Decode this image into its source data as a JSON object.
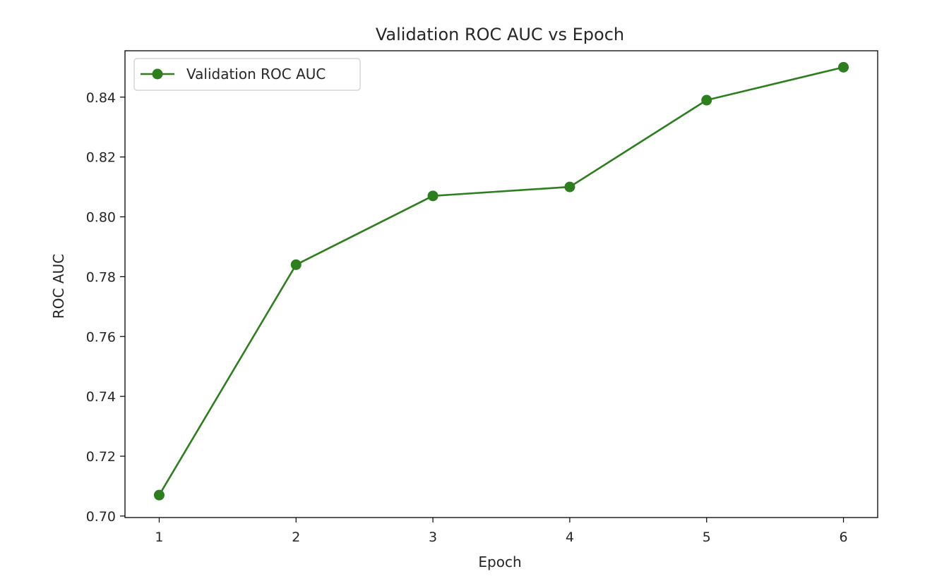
{
  "chart_data": {
    "type": "line",
    "title": "Validation ROC AUC vs Epoch",
    "xlabel": "Epoch",
    "ylabel": "ROC AUC",
    "x": [
      1,
      2,
      3,
      4,
      5,
      6
    ],
    "xticks": [
      "1",
      "2",
      "3",
      "4",
      "5",
      "6"
    ],
    "yticks": [
      "0.70",
      "0.72",
      "0.74",
      "0.76",
      "0.78",
      "0.80",
      "0.82",
      "0.84"
    ],
    "ylim": [
      0.6995,
      0.8555
    ],
    "xlim": [
      0.75,
      6.25
    ],
    "grid": false,
    "legend_position": "upper-left",
    "series": [
      {
        "name": "Validation ROC AUC",
        "color": "#2e7d1f",
        "marker": "circle",
        "values": [
          0.707,
          0.784,
          0.807,
          0.81,
          0.839,
          0.85
        ]
      }
    ]
  }
}
